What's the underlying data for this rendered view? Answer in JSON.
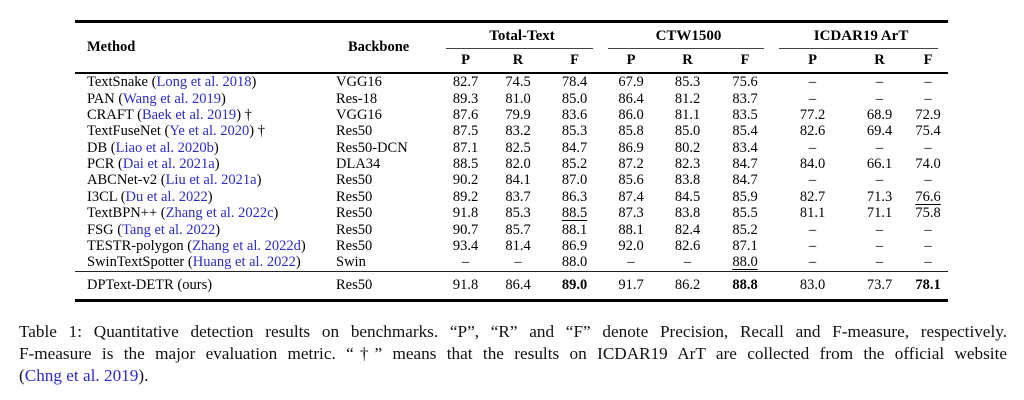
{
  "colors": {
    "citation_blue": "#2b2bc8",
    "text": "#000000"
  },
  "table": {
    "headers": {
      "method": "Method",
      "backbone": "Backbone",
      "groups": [
        {
          "label": "Total-Text"
        },
        {
          "label": "CTW1500"
        },
        {
          "label": "ICDAR19 ArT"
        }
      ],
      "sub": [
        "P",
        "R",
        "F"
      ]
    },
    "rows": [
      {
        "method": "TextSnake",
        "cite": "Long et al. 2018",
        "dagger": false,
        "backbone": "VGG16",
        "values": [
          "82.7",
          "74.5",
          "78.4",
          "67.9",
          "85.3",
          "75.6",
          "–",
          "–",
          "–"
        ]
      },
      {
        "method": "PAN",
        "cite": "Wang et al. 2019",
        "dagger": false,
        "backbone": "Res-18",
        "values": [
          "89.3",
          "81.0",
          "85.0",
          "86.4",
          "81.2",
          "83.7",
          "–",
          "–",
          "–"
        ]
      },
      {
        "method": "CRAFT",
        "cite": "Baek et al. 2019",
        "dagger": true,
        "backbone": "VGG16",
        "values": [
          "87.6",
          "79.9",
          "83.6",
          "86.0",
          "81.1",
          "83.5",
          "77.2",
          "68.9",
          "72.9"
        ]
      },
      {
        "method": "TextFuseNet",
        "cite": "Ye et al. 2020",
        "dagger": true,
        "backbone": "Res50",
        "values": [
          "87.5",
          "83.2",
          "85.3",
          "85.8",
          "85.0",
          "85.4",
          "82.6",
          "69.4",
          "75.4"
        ]
      },
      {
        "method": "DB",
        "cite": "Liao et al. 2020b",
        "dagger": false,
        "backbone": "Res50-DCN",
        "values": [
          "87.1",
          "82.5",
          "84.7",
          "86.9",
          "80.2",
          "83.4",
          "–",
          "–",
          "–"
        ]
      },
      {
        "method": "PCR",
        "cite": "Dai et al. 2021a",
        "dagger": false,
        "backbone": "DLA34",
        "values": [
          "88.5",
          "82.0",
          "85.2",
          "87.2",
          "82.3",
          "84.7",
          "84.0",
          "66.1",
          "74.0"
        ]
      },
      {
        "method": "ABCNet-v2",
        "cite": "Liu et al. 2021a",
        "dagger": false,
        "backbone": "Res50",
        "values": [
          "90.2",
          "84.1",
          "87.0",
          "85.6",
          "83.8",
          "84.7",
          "–",
          "–",
          "–"
        ]
      },
      {
        "method": "I3CL",
        "cite": "Du et al. 2022",
        "dagger": false,
        "backbone": "Res50",
        "values": [
          "89.2",
          "83.7",
          "86.3",
          "87.4",
          "84.5",
          "85.9",
          "82.7",
          "71.3",
          {
            "v": "76.6",
            "style": "underline"
          }
        ]
      },
      {
        "method": "TextBPN++",
        "cite": "Zhang et al. 2022c",
        "dagger": false,
        "backbone": "Res50",
        "values": [
          "91.8",
          "85.3",
          {
            "v": "88.5",
            "style": "underline"
          },
          "87.3",
          "83.8",
          "85.5",
          "81.1",
          "71.1",
          "75.8"
        ]
      },
      {
        "method": "FSG",
        "cite": "Tang et al. 2022",
        "dagger": false,
        "backbone": "Res50",
        "values": [
          "90.7",
          "85.7",
          "88.1",
          "88.1",
          "82.4",
          "85.2",
          "–",
          "–",
          "–"
        ]
      },
      {
        "method": "TESTR-polygon",
        "cite": "Zhang et al. 2022d",
        "dagger": false,
        "backbone": "Res50",
        "values": [
          "93.4",
          "81.4",
          "86.9",
          "92.0",
          "82.6",
          "87.1",
          "–",
          "–",
          "–"
        ]
      },
      {
        "method": "SwinTextSpotter",
        "cite": "Huang et al. 2022",
        "dagger": false,
        "backbone": "Swin",
        "values": [
          "–",
          "–",
          "88.0",
          "–",
          "–",
          {
            "v": "88.0",
            "style": "underline"
          },
          "–",
          "–",
          "–"
        ]
      }
    ],
    "ours_row": {
      "method": "DPText-DETR (ours)",
      "cite": "",
      "dagger": false,
      "backbone": "Res50",
      "values": [
        "91.8",
        "86.4",
        {
          "v": "89.0",
          "style": "bold"
        },
        "91.7",
        "86.2",
        {
          "v": "88.8",
          "style": "bold"
        },
        "83.0",
        "73.7",
        {
          "v": "78.1",
          "style": "bold"
        }
      ]
    }
  },
  "caption": {
    "line1": "Table 1: Quantitative detection results on benchmarks. “P”, “R” and “F” denote Precision, Recall and F-measure, respectively.",
    "line2": "F-measure is the major evaluation metric. “†” means that the results on ICDAR19 ArT are collected from the official website",
    "line3_open": "(",
    "line3_cite": "Chng et al. 2019",
    "line3_close": ")."
  }
}
